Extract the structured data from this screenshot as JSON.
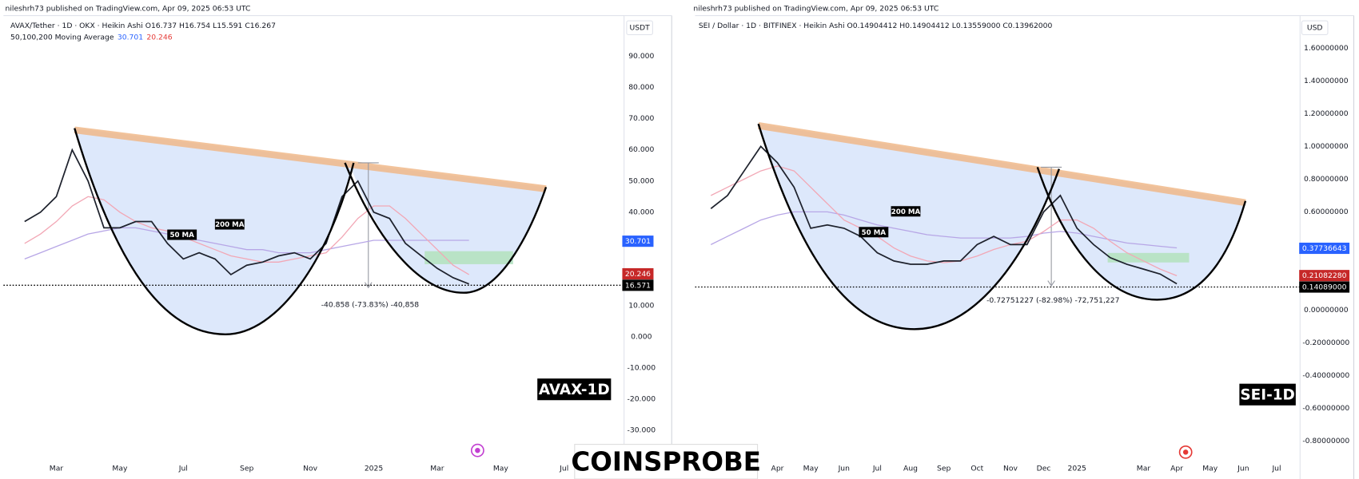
{
  "site_watermark": "COINSPROBE",
  "chart_data": [
    {
      "type": "line",
      "published": "nileshrh73 published on TradingView.com, Apr 09, 2025 06:53 UTC",
      "title": "AVAX/Tether · 1D · OKX · Heikin Ashi  O16.737  H16.754  L15.591  C16.267",
      "ma_legend": "50,100,200 Moving Average",
      "ma_legend_values": [
        30.701,
        20.246
      ],
      "ma_legend_colors": [
        "#2962ff",
        "#e53935"
      ],
      "currency": "USDT",
      "watermark": "AVAX-1D",
      "measure": "-40.858 (-73.83%) -40,858",
      "categories": [
        null,
        null,
        "Mar",
        null,
        null,
        null,
        "May",
        null,
        null,
        null,
        "Jul",
        null,
        null,
        null,
        "Sep",
        null,
        null,
        null,
        "Nov",
        null,
        null,
        null,
        "2025",
        null,
        null,
        null,
        "Mar",
        null,
        null,
        null,
        "May",
        null,
        null,
        null,
        "Jul",
        null
      ],
      "series": [
        {
          "name": "200 MA",
          "color": "#b7a6e6",
          "values": [
            25,
            27,
            29,
            31,
            33,
            34,
            35,
            35,
            34,
            33,
            32,
            31,
            30,
            29,
            28,
            28,
            27,
            27,
            27,
            28,
            29,
            30,
            31,
            31,
            31,
            31,
            31,
            31,
            31,
            null,
            null,
            null,
            null,
            null,
            null,
            null
          ]
        },
        {
          "name": "50 MA",
          "color": "#f2a7b5",
          "values": [
            30,
            33,
            37,
            42,
            45,
            44,
            40,
            37,
            35,
            34,
            32,
            30,
            28,
            26,
            25,
            24,
            24,
            25,
            26,
            27,
            32,
            38,
            42,
            42,
            38,
            33,
            28,
            23,
            20,
            null,
            null,
            null,
            null,
            null,
            null,
            null
          ]
        },
        {
          "name": "AVAX/Tether",
          "color": "#1e222d",
          "values": [
            37,
            40,
            45,
            60,
            50,
            35,
            35,
            37,
            37,
            30,
            25,
            27,
            25,
            20,
            23,
            24,
            26,
            27,
            25,
            30,
            45,
            50,
            40,
            38,
            30,
            26,
            22,
            19,
            17,
            null,
            null,
            null,
            null,
            null,
            null,
            null
          ]
        }
      ],
      "ylim": [
        -39.17,
        102.5
      ],
      "yticks": [
        {
          "value": 90,
          "label": "90.000"
        },
        {
          "value": 80,
          "label": "80.000"
        },
        {
          "value": 70,
          "label": "70.000"
        },
        {
          "value": 60,
          "label": "60.000"
        },
        {
          "value": 50,
          "label": "50.000"
        },
        {
          "value": 40,
          "label": "40.000"
        },
        {
          "value": 10,
          "label": "10.000"
        },
        {
          "value": 0,
          "label": "0.000"
        },
        {
          "value": -10,
          "label": "-10.000"
        },
        {
          "value": -20,
          "label": "-20.000"
        },
        {
          "value": -30,
          "label": "-30.000"
        }
      ],
      "price_labels": [
        {
          "value": 30.701,
          "color": "#2962ff"
        },
        {
          "value": 20.246,
          "color": "#c62828"
        },
        {
          "value": 16.571,
          "color": "#000000"
        }
      ]
    },
    {
      "type": "line",
      "published": "nileshrh73 published on TradingView.com, Apr 09, 2025 06:53 UTC",
      "title": "SEI / Dollar · 1D · BITFINEX · Heikin Ashi  O0.14904412  H0.14904412  L0.13559000  C0.13962000",
      "currency": "USD",
      "watermark": "SEI-1D",
      "measure": "-0.72751227 (-82.98%) -72,751,227",
      "categories": [
        null,
        null,
        null,
        null,
        "Apr",
        null,
        "May",
        null,
        "Jun",
        null,
        "Jul",
        null,
        "Aug",
        null,
        "Sep",
        null,
        "Oct",
        null,
        "Nov",
        null,
        "Dec",
        null,
        "2025",
        null,
        null,
        null,
        "Mar",
        null,
        "Apr",
        null,
        "May",
        null,
        "Jun",
        null,
        "Jul",
        null
      ],
      "series": [
        {
          "name": "200 MA",
          "color": "#b7a6e6",
          "values": [
            0.4,
            0.45,
            0.5,
            0.55,
            0.58,
            0.6,
            0.6,
            0.6,
            0.58,
            0.55,
            0.52,
            0.5,
            0.48,
            0.46,
            0.45,
            0.44,
            0.44,
            0.44,
            0.44,
            0.45,
            0.47,
            0.48,
            0.47,
            0.45,
            0.43,
            0.41,
            0.4,
            0.39,
            0.38,
            null,
            null,
            null,
            null,
            null,
            null,
            null
          ]
        },
        {
          "name": "50 MA",
          "color": "#f2a7b5",
          "values": [
            0.7,
            0.75,
            0.8,
            0.85,
            0.88,
            0.85,
            0.75,
            0.65,
            0.55,
            0.5,
            0.45,
            0.38,
            0.33,
            0.3,
            0.29,
            0.3,
            0.33,
            0.37,
            0.4,
            0.42,
            0.48,
            0.55,
            0.55,
            0.5,
            0.42,
            0.35,
            0.3,
            0.25,
            0.21,
            null,
            null,
            null,
            null,
            null,
            null,
            null
          ]
        },
        {
          "name": "SEI / Dollar",
          "color": "#1e222d",
          "values": [
            0.62,
            0.7,
            0.85,
            1.0,
            0.9,
            0.75,
            0.5,
            0.52,
            0.5,
            0.45,
            0.35,
            0.3,
            0.28,
            0.28,
            0.3,
            0.3,
            0.4,
            0.45,
            0.4,
            0.4,
            0.6,
            0.7,
            0.5,
            0.4,
            0.32,
            0.28,
            0.25,
            0.22,
            0.16,
            null,
            null,
            null,
            null,
            null,
            null,
            null
          ]
        }
      ],
      "ylim": [
        -0.91,
        1.788
      ],
      "yticks": [
        {
          "value": 1.6,
          "label": "1.60000000"
        },
        {
          "value": 1.4,
          "label": "1.40000000"
        },
        {
          "value": 1.2,
          "label": "1.20000000"
        },
        {
          "value": 1.0,
          "label": "1.00000000"
        },
        {
          "value": 0.8,
          "label": "0.80000000"
        },
        {
          "value": 0.6,
          "label": "0.60000000"
        },
        {
          "value": 0,
          "label": "0.00000000"
        },
        {
          "value": -0.2,
          "label": "-0.20000000"
        },
        {
          "value": -0.4,
          "label": "-0.40000000"
        },
        {
          "value": -0.6,
          "label": "-0.60000000"
        },
        {
          "value": -0.8,
          "label": "-0.80000000"
        }
      ],
      "price_labels": [
        {
          "value": 0.37736643,
          "color": "#2962ff"
        },
        {
          "value": 0.2108228,
          "label": "0.21082280",
          "color": "#c62828"
        },
        {
          "value": 0.14089,
          "label": "0.14089000",
          "color": "#000000"
        }
      ]
    }
  ]
}
